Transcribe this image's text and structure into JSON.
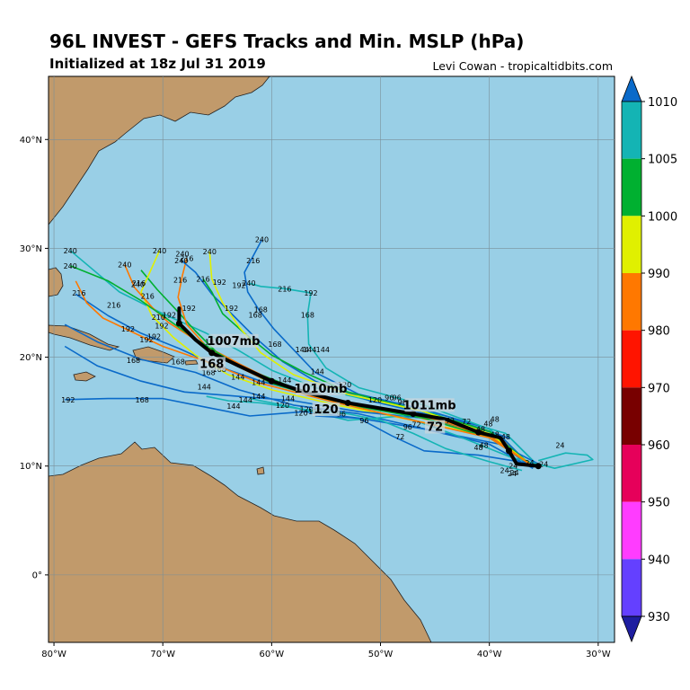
{
  "header": {
    "title": "96L INVEST - GEFS Tracks and Min. MSLP (hPa)",
    "subtitle": "Initialized at 18z Jul 31 2019",
    "credit": "Levi Cowan - tropicaltidbits.com"
  },
  "map": {
    "lon_range": [
      -80.5,
      -28.5
    ],
    "lat_range": [
      -6.2,
      45.8
    ],
    "x_ticks": [
      "80°W",
      "70°W",
      "60°W",
      "50°W",
      "40°W",
      "30°W"
    ],
    "x_tick_values": [
      -80,
      -70,
      -60,
      -50,
      -40,
      -30
    ],
    "y_ticks": [
      "40°N",
      "30°N",
      "20°N",
      "10°N",
      "0°"
    ],
    "y_tick_values": [
      40,
      30,
      20,
      10,
      0
    ],
    "ocean_color": "#99cfe6",
    "land_color": "#c19a6b"
  },
  "colorbar": {
    "levels": [
      "1010",
      "1005",
      "1000",
      "990",
      "980",
      "970",
      "960",
      "950",
      "940",
      "930"
    ],
    "colors": [
      "#0a6ac9",
      "#14b4b4",
      "#00b030",
      "#e0f000",
      "#ff7800",
      "#ff1400",
      "#780000",
      "#e6005a",
      "#ff3cff",
      "#6440ff",
      "#1e1ea0"
    ]
  },
  "mean_labels": [
    {
      "text": "1007mb",
      "lon": -63.5,
      "lat": 21.3
    },
    {
      "text": "168",
      "lon": -65.5,
      "lat": 19.2
    },
    {
      "text": "1010mb",
      "lon": -55.5,
      "lat": 16.9
    },
    {
      "text": "120",
      "lon": -55.0,
      "lat": 15.0
    },
    {
      "text": "1011mb",
      "lon": -45.5,
      "lat": 15.4
    },
    {
      "text": "72",
      "lon": -45.0,
      "lat": 13.4
    }
  ],
  "hour_labels": [
    {
      "t": "240",
      "lon": -78.5,
      "lat": 29.8
    },
    {
      "t": "240",
      "lon": -78.5,
      "lat": 28.4
    },
    {
      "t": "216",
      "lon": -77.7,
      "lat": 25.9
    },
    {
      "t": "216",
      "lon": -74.5,
      "lat": 24.8
    },
    {
      "t": "192",
      "lon": -73.2,
      "lat": 22.6
    },
    {
      "t": "192",
      "lon": -65.5,
      "lat": 21.4
    },
    {
      "t": "168",
      "lon": -72.7,
      "lat": 19.7
    },
    {
      "t": "168",
      "lon": -68.6,
      "lat": 19.6
    },
    {
      "t": "192",
      "lon": -78.7,
      "lat": 16.1
    },
    {
      "t": "168",
      "lon": -71.9,
      "lat": 16.1
    },
    {
      "t": "144",
      "lon": -66.2,
      "lat": 17.3
    },
    {
      "t": "144",
      "lon": -63.5,
      "lat": 15.5
    },
    {
      "t": "240",
      "lon": -73.5,
      "lat": 28.5
    },
    {
      "t": "240",
      "lon": -70.3,
      "lat": 29.8
    },
    {
      "t": "240",
      "lon": -72.3,
      "lat": 26.7
    },
    {
      "t": "216",
      "lon": -71.4,
      "lat": 25.6
    },
    {
      "t": "216",
      "lon": -72.2,
      "lat": 26.8
    },
    {
      "t": "210",
      "lon": -70.4,
      "lat": 23.7
    },
    {
      "t": "192",
      "lon": -69.4,
      "lat": 23.9
    },
    {
      "t": "192",
      "lon": -70.1,
      "lat": 22.9
    },
    {
      "t": "192",
      "lon": -71.5,
      "lat": 21.6
    },
    {
      "t": "192",
      "lon": -70.8,
      "lat": 21.9
    },
    {
      "t": "240",
      "lon": -68.2,
      "lat": 29.5
    },
    {
      "t": "240",
      "lon": -68.3,
      "lat": 28.9
    },
    {
      "t": "216",
      "lon": -67.8,
      "lat": 29.1
    },
    {
      "t": "216",
      "lon": -68.4,
      "lat": 27.1
    },
    {
      "t": "192",
      "lon": -67.6,
      "lat": 24.5
    },
    {
      "t": "240",
      "lon": -65.7,
      "lat": 29.7
    },
    {
      "t": "216",
      "lon": -66.3,
      "lat": 27.2
    },
    {
      "t": "192",
      "lon": -64.8,
      "lat": 26.9
    },
    {
      "t": "192",
      "lon": -63.7,
      "lat": 24.5
    },
    {
      "t": "216",
      "lon": -61.7,
      "lat": 28.9
    },
    {
      "t": "240",
      "lon": -60.9,
      "lat": 30.8
    },
    {
      "t": "240",
      "lon": -62.1,
      "lat": 26.8
    },
    {
      "t": "192",
      "lon": -63.0,
      "lat": 26.6
    },
    {
      "t": "216",
      "lon": -58.8,
      "lat": 26.3
    },
    {
      "t": "192",
      "lon": -56.4,
      "lat": 25.9
    },
    {
      "t": "168",
      "lon": -61.0,
      "lat": 24.4
    },
    {
      "t": "168",
      "lon": -61.5,
      "lat": 23.9
    },
    {
      "t": "168",
      "lon": -56.7,
      "lat": 23.9
    },
    {
      "t": "168",
      "lon": -59.7,
      "lat": 21.2
    },
    {
      "t": "144",
      "lon": -57.2,
      "lat": 20.7
    },
    {
      "t": "144",
      "lon": -56.5,
      "lat": 20.7
    },
    {
      "t": "144",
      "lon": -55.3,
      "lat": 20.7
    },
    {
      "t": "144",
      "lon": -55.8,
      "lat": 18.7
    },
    {
      "t": "168",
      "lon": -65.8,
      "lat": 18.6
    },
    {
      "t": "168",
      "lon": -64.8,
      "lat": 18.9
    },
    {
      "t": "144",
      "lon": -63.1,
      "lat": 18.2
    },
    {
      "t": "144",
      "lon": -61.2,
      "lat": 17.7
    },
    {
      "t": "144",
      "lon": -58.8,
      "lat": 17.9
    },
    {
      "t": "144",
      "lon": -61.2,
      "lat": 16.4
    },
    {
      "t": "144",
      "lon": -62.4,
      "lat": 16.1
    },
    {
      "t": "144",
      "lon": -58.5,
      "lat": 16.2
    },
    {
      "t": "120",
      "lon": -59.0,
      "lat": 15.6
    },
    {
      "t": "120",
      "lon": -56.8,
      "lat": 15.2
    },
    {
      "t": "120",
      "lon": -56.0,
      "lat": 15.0
    },
    {
      "t": "120",
      "lon": -57.3,
      "lat": 14.9
    },
    {
      "t": "96",
      "lon": -53.6,
      "lat": 14.8
    },
    {
      "t": "96",
      "lon": -51.5,
      "lat": 14.2
    },
    {
      "t": "96",
      "lon": -49.2,
      "lat": 16.3
    },
    {
      "t": "96",
      "lon": -48.5,
      "lat": 16.3
    },
    {
      "t": "96",
      "lon": -48.0,
      "lat": 15.9
    },
    {
      "t": "96",
      "lon": -47.5,
      "lat": 13.6
    },
    {
      "t": "72",
      "lon": -48.2,
      "lat": 12.7
    },
    {
      "t": "72",
      "lon": -46.7,
      "lat": 13.8
    },
    {
      "t": "72",
      "lon": -45.2,
      "lat": 13.8
    },
    {
      "t": "72",
      "lon": -43.6,
      "lat": 14.2
    },
    {
      "t": "72",
      "lon": -42.1,
      "lat": 14.1
    },
    {
      "t": "120",
      "lon": -53.3,
      "lat": 17.5
    },
    {
      "t": "120",
      "lon": -50.5,
      "lat": 16.1
    },
    {
      "t": "48",
      "lon": -39.5,
      "lat": 14.3
    },
    {
      "t": "48",
      "lon": -40.1,
      "lat": 13.9
    },
    {
      "t": "48",
      "lon": -40.8,
      "lat": 13.4
    },
    {
      "t": "48",
      "lon": -38.5,
      "lat": 12.7
    },
    {
      "t": "48",
      "lon": -40.5,
      "lat": 11.9
    },
    {
      "t": "48",
      "lon": -41.0,
      "lat": 11.7
    },
    {
      "t": "48",
      "lon": -39.5,
      "lat": 12.9
    },
    {
      "t": "24",
      "lon": -37.8,
      "lat": 10.0
    },
    {
      "t": "24",
      "lon": -36.3,
      "lat": 10.3
    },
    {
      "t": "24",
      "lon": -35.0,
      "lat": 10.2
    },
    {
      "t": "24",
      "lon": -33.5,
      "lat": 11.9
    },
    {
      "t": "24",
      "lon": -37.7,
      "lat": 9.4
    },
    {
      "t": "24",
      "lon": -38.6,
      "lat": 9.6
    },
    {
      "t": "24",
      "lon": -37.9,
      "lat": 9.3
    }
  ],
  "ensemble_tracks": [
    {
      "c": "#0a6ac9",
      "p": [
        [
          -35.5,
          10.0
        ],
        [
          -38,
          12.5
        ],
        [
          -43,
          14.2
        ],
        [
          -50,
          15.2
        ],
        [
          -56,
          16.5
        ],
        [
          -61,
          17.8
        ],
        [
          -65,
          19.2
        ],
        [
          -68.5,
          20.8
        ],
        [
          -72,
          22.2
        ],
        [
          -75,
          23.8
        ],
        [
          -78,
          25.8
        ]
      ]
    },
    {
      "c": "#14b4b4",
      "p": [
        [
          -35.5,
          10.0
        ],
        [
          -38.5,
          13.0
        ],
        [
          -44,
          14.6
        ],
        [
          -50,
          15.8
        ],
        [
          -56,
          17.2
        ],
        [
          -60,
          18.8
        ],
        [
          -63,
          20.6
        ],
        [
          -66,
          22.2
        ],
        [
          -70,
          24.0
        ],
        [
          -74,
          26.0
        ],
        [
          -78.5,
          29.8
        ]
      ]
    },
    {
      "c": "#00b030",
      "p": [
        [
          -36,
          9.8
        ],
        [
          -39,
          12.8
        ],
        [
          -45,
          14.2
        ],
        [
          -52,
          15.6
        ],
        [
          -58,
          17.2
        ],
        [
          -62,
          18.8
        ],
        [
          -65,
          20.4
        ],
        [
          -67,
          22.4
        ],
        [
          -69,
          24.6
        ],
        [
          -70.5,
          26.2
        ],
        [
          -72,
          28.0
        ]
      ]
    },
    {
      "c": "#e0f000",
      "p": [
        [
          -36,
          9.8
        ],
        [
          -39,
          12.5
        ],
        [
          -46,
          14.0
        ],
        [
          -54,
          15.6
        ],
        [
          -60,
          17.0
        ],
        [
          -64,
          18.4
        ],
        [
          -67,
          20.2
        ],
        [
          -69,
          21.8
        ],
        [
          -71,
          23.8
        ],
        [
          -72,
          26.0
        ],
        [
          -70.3,
          29.8
        ]
      ]
    },
    {
      "c": "#ff7800",
      "p": [
        [
          -36,
          9.8
        ],
        [
          -39,
          12.6
        ],
        [
          -45,
          14.3
        ],
        [
          -53,
          15.8
        ],
        [
          -59,
          17.4
        ],
        [
          -63,
          19.4
        ],
        [
          -66,
          21.0
        ],
        [
          -67.8,
          23.0
        ],
        [
          -68.6,
          25.5
        ],
        [
          -68.2,
          27.5
        ],
        [
          -67.8,
          29.1
        ]
      ]
    },
    {
      "c": "#0a6ac9",
      "p": [
        [
          -36,
          9.8
        ],
        [
          -39,
          12.8
        ],
        [
          -45,
          14.6
        ],
        [
          -51,
          16.0
        ],
        [
          -56,
          17.8
        ],
        [
          -59,
          19.6
        ],
        [
          -61.5,
          21.8
        ],
        [
          -63.5,
          23.8
        ],
        [
          -65.5,
          25.8
        ],
        [
          -67,
          27.8
        ],
        [
          -68.3,
          28.9
        ]
      ]
    },
    {
      "c": "#0a6ac9",
      "p": [
        [
          -36,
          9.8
        ],
        [
          -40,
          13.4
        ],
        [
          -46,
          15.2
        ],
        [
          -52,
          16.6
        ],
        [
          -56,
          18.6
        ],
        [
          -58,
          20.7
        ],
        [
          -59.8,
          22.6
        ],
        [
          -61.2,
          24.4
        ],
        [
          -62.2,
          26.0
        ],
        [
          -62.5,
          27.8
        ],
        [
          -60.9,
          30.8
        ]
      ]
    },
    {
      "c": "#14b4b4",
      "p": [
        [
          -36,
          9.8
        ],
        [
          -40,
          13.4
        ],
        [
          -46,
          15.6
        ],
        [
          -52,
          17.2
        ],
        [
          -55,
          19.0
        ],
        [
          -56.6,
          21.2
        ],
        [
          -56.7,
          23.9
        ],
        [
          -56.4,
          25.9
        ],
        [
          -58.8,
          26.3
        ],
        [
          -61,
          26.5
        ],
        [
          -62.1,
          26.8
        ]
      ]
    },
    {
      "c": "#0a6ac9",
      "p": [
        [
          -36,
          9.8
        ],
        [
          -40,
          12.8
        ],
        [
          -46,
          14.4
        ],
        [
          -52,
          15.0
        ],
        [
          -58,
          16.0
        ],
        [
          -63,
          16.4
        ],
        [
          -68,
          16.8
        ],
        [
          -72,
          17.8
        ],
        [
          -76,
          19.2
        ],
        [
          -79,
          21.0
        ]
      ]
    },
    {
      "c": "#0a6ac9",
      "p": [
        [
          -36,
          9.8
        ],
        [
          -40,
          12.0
        ],
        [
          -46,
          13.4
        ],
        [
          -52,
          14.4
        ],
        [
          -57,
          15.0
        ],
        [
          -62,
          14.6
        ],
        [
          -66,
          15.4
        ],
        [
          -70,
          16.2
        ],
        [
          -75,
          16.2
        ],
        [
          -79,
          16.1
        ]
      ]
    },
    {
      "c": "#0a6ac9",
      "p": [
        [
          -35.5,
          10.2
        ],
        [
          -39,
          12.0
        ],
        [
          -45,
          13.2
        ],
        [
          -52,
          14.8
        ],
        [
          -58,
          15.6
        ],
        [
          -63,
          17.0
        ],
        [
          -67,
          18.6
        ],
        [
          -72,
          19.8
        ],
        [
          -76,
          21.4
        ],
        [
          -79,
          23.0
        ]
      ]
    },
    {
      "c": "#14b4b4",
      "p": [
        [
          -35.5,
          10.5
        ],
        [
          -33,
          11.2
        ],
        [
          -31,
          11.0
        ],
        [
          -30.5,
          10.6
        ],
        [
          -34,
          9.8
        ],
        [
          -38,
          10.8
        ],
        [
          -43,
          12.8
        ],
        [
          -48,
          14.6
        ],
        [
          -53,
          14.2
        ],
        [
          -58,
          15.4
        ],
        [
          -62,
          16.2
        ]
      ]
    },
    {
      "c": "#0a6ac9",
      "p": [
        [
          -36,
          10.2
        ],
        [
          -41,
          11.0
        ],
        [
          -46,
          11.4
        ],
        [
          -49,
          12.8
        ],
        [
          -52,
          14.4
        ],
        [
          -56,
          14.6
        ]
      ]
    },
    {
      "c": "#14b4b4",
      "p": [
        [
          -37,
          9.6
        ],
        [
          -40,
          10.4
        ],
        [
          -44,
          11.6
        ],
        [
          -47,
          13.0
        ],
        [
          -50,
          14.2
        ],
        [
          -53,
          14.8
        ],
        [
          -57,
          15.2
        ],
        [
          -61,
          15.8
        ],
        [
          -64,
          16.0
        ],
        [
          -66,
          16.4
        ]
      ]
    },
    {
      "c": "#00b030",
      "p": [
        [
          -36,
          10.0
        ],
        [
          -40,
          13.2
        ],
        [
          -46,
          15.0
        ],
        [
          -53,
          16.8
        ],
        [
          -57,
          18.6
        ],
        [
          -60,
          20.2
        ],
        [
          -62.5,
          22.2
        ],
        [
          -64.5,
          24.0
        ],
        [
          -65.5,
          26.0
        ],
        [
          -66.3,
          27.2
        ]
      ]
    },
    {
      "c": "#e0f000",
      "p": [
        [
          -36,
          10.0
        ],
        [
          -40,
          13.0
        ],
        [
          -46,
          15.0
        ],
        [
          -53,
          16.6
        ],
        [
          -58,
          18.4
        ],
        [
          -61,
          20.4
        ],
        [
          -63,
          22.8
        ],
        [
          -64.5,
          25.0
        ],
        [
          -65.5,
          27.2
        ],
        [
          -65.7,
          29.7
        ]
      ]
    },
    {
      "c": "#ff7800",
      "p": [
        [
          -36,
          10.0
        ],
        [
          -40,
          12.8
        ],
        [
          -47,
          14.6
        ],
        [
          -54,
          16.0
        ],
        [
          -60,
          17.6
        ],
        [
          -64,
          19.6
        ],
        [
          -67,
          21.6
        ],
        [
          -69.5,
          23.2
        ],
        [
          -71,
          24.6
        ],
        [
          -72.6,
          26.4
        ],
        [
          -73.5,
          28.5
        ]
      ]
    },
    {
      "c": "#00b030",
      "p": [
        [
          -36,
          10.0
        ],
        [
          -40,
          12.6
        ],
        [
          -46,
          14.4
        ],
        [
          -54,
          15.8
        ],
        [
          -60,
          17.6
        ],
        [
          -64,
          19.8
        ],
        [
          -67.5,
          22.0
        ],
        [
          -70,
          23.8
        ],
        [
          -72,
          25.2
        ],
        [
          -75,
          27.0
        ],
        [
          -78.5,
          28.4
        ]
      ]
    },
    {
      "c": "#ff7800",
      "p": [
        [
          -36,
          10.0
        ],
        [
          -40,
          12.6
        ],
        [
          -47,
          14.2
        ],
        [
          -54,
          15.8
        ],
        [
          -61,
          17.6
        ],
        [
          -66,
          19.6
        ],
        [
          -70,
          21.0
        ],
        [
          -73,
          22.4
        ],
        [
          -75.5,
          23.6
        ],
        [
          -77,
          25.0
        ],
        [
          -78,
          27.0
        ]
      ]
    }
  ],
  "mean_track": [
    [
      -35.5,
      10.0
    ],
    [
      -37.5,
      10.2
    ],
    [
      -38.2,
      11.4
    ],
    [
      -39,
      12.6
    ],
    [
      -41,
      13.1
    ],
    [
      -44,
      14.3
    ],
    [
      -47,
      14.8
    ],
    [
      -50,
      15.3
    ],
    [
      -53,
      15.8
    ],
    [
      -57,
      16.8
    ],
    [
      -60,
      17.8
    ],
    [
      -63,
      19.2
    ],
    [
      -65.5,
      20.4
    ],
    [
      -67,
      21.6
    ],
    [
      -68.5,
      23.1
    ],
    [
      -68.5,
      24.5
    ]
  ]
}
